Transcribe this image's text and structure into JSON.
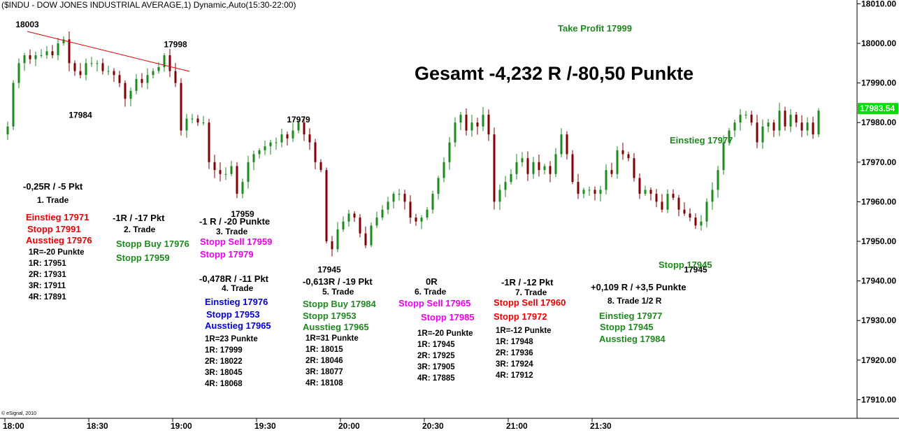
{
  "window_title": "($INDU - DOW JONES INDUSTRIAL AVERAGE,1) Dynamic,Auto(15:30-22:00)",
  "copyright": "© eSignal, 2010",
  "last_price": "17983.54",
  "headline": "Gesamt -4,232 R /-80,50 Punkte",
  "take_profit": "Take Profit 17999",
  "einstieg_right": "Einstieg 17977",
  "stopp_right": "Stopp 17945",
  "colors": {
    "accent_red": "#ee0000",
    "accent_green": "#1e8a1e",
    "magenta": "#ee00ee",
    "blue": "#0000dd",
    "price_tag": "#00dd00"
  },
  "chart_data": {
    "type": "candlestick",
    "title": "($INDU - DOW JONES INDUSTRIAL AVERAGE,1) Dynamic,Auto(15:30-22:00)",
    "y_axis_side": "right",
    "ylim": [
      17904,
      18012
    ],
    "y_ticks": [
      "18010.00",
      "18000.00",
      "17990.00",
      "17980.00",
      "17970.00",
      "17960.00",
      "17950.00",
      "17940.00",
      "17930.00",
      "17920.00",
      "17910.00"
    ],
    "x_ticks": [
      "18:00",
      "18:30",
      "19:00",
      "19:30",
      "20:00",
      "20:30",
      "21:00",
      "21:30"
    ],
    "x_range_minutes": [
      1080,
      1321
    ],
    "close_path": [
      [
        1081,
        17979
      ],
      [
        1083,
        17990
      ],
      [
        1085,
        17995
      ],
      [
        1087,
        17997
      ],
      [
        1089,
        17996
      ],
      [
        1091,
        17997
      ],
      [
        1093,
        17997
      ],
      [
        1095,
        17998
      ],
      [
        1097,
        17997
      ],
      [
        1099,
        18000
      ],
      [
        1101,
        18001
      ],
      [
        1103,
        17995
      ],
      [
        1105,
        17993
      ],
      [
        1107,
        17992
      ],
      [
        1109,
        17995
      ],
      [
        1111,
        17995
      ],
      [
        1113,
        17995
      ],
      [
        1115,
        17993
      ],
      [
        1117,
        17993
      ],
      [
        1119,
        17992
      ],
      [
        1121,
        17990
      ],
      [
        1123,
        17986
      ],
      [
        1125,
        17988
      ],
      [
        1127,
        17991
      ],
      [
        1129,
        17990
      ],
      [
        1131,
        17992
      ],
      [
        1133,
        17993
      ],
      [
        1135,
        17994
      ],
      [
        1137,
        17997
      ],
      [
        1139,
        17993
      ],
      [
        1141,
        17990
      ],
      [
        1143,
        17978
      ],
      [
        1145,
        17981
      ],
      [
        1147,
        17981
      ],
      [
        1149,
        17980
      ],
      [
        1151,
        17980
      ],
      [
        1153,
        17970
      ],
      [
        1155,
        17968
      ],
      [
        1157,
        17967
      ],
      [
        1159,
        17967
      ],
      [
        1161,
        17969
      ],
      [
        1163,
        17962
      ],
      [
        1165,
        17965
      ],
      [
        1167,
        17970
      ],
      [
        1169,
        17972
      ],
      [
        1171,
        17973
      ],
      [
        1173,
        17974
      ],
      [
        1175,
        17975
      ],
      [
        1177,
        17975
      ],
      [
        1179,
        17977
      ],
      [
        1181,
        17976
      ],
      [
        1183,
        17978
      ],
      [
        1185,
        17980
      ],
      [
        1187,
        17977
      ],
      [
        1189,
        17975
      ],
      [
        1191,
        17970
      ],
      [
        1193,
        17968
      ],
      [
        1195,
        17950
      ],
      [
        1197,
        17948
      ],
      [
        1199,
        17953
      ],
      [
        1201,
        17955
      ],
      [
        1203,
        17957
      ],
      [
        1205,
        17956
      ],
      [
        1207,
        17952
      ],
      [
        1209,
        17949
      ],
      [
        1211,
        17954
      ],
      [
        1213,
        17956
      ],
      [
        1215,
        17958
      ],
      [
        1217,
        17960
      ],
      [
        1219,
        17962
      ],
      [
        1221,
        17962
      ],
      [
        1223,
        17960
      ],
      [
        1225,
        17956
      ],
      [
        1227,
        17955
      ],
      [
        1229,
        17956
      ],
      [
        1231,
        17958
      ],
      [
        1233,
        17962
      ],
      [
        1235,
        17966
      ],
      [
        1237,
        17970
      ],
      [
        1239,
        17975
      ],
      [
        1241,
        17980
      ],
      [
        1243,
        17982
      ],
      [
        1245,
        17978
      ],
      [
        1247,
        17980
      ],
      [
        1249,
        17979
      ],
      [
        1251,
        17982
      ],
      [
        1253,
        17977
      ],
      [
        1255,
        17960
      ],
      [
        1257,
        17963
      ],
      [
        1259,
        17965
      ],
      [
        1261,
        17967
      ],
      [
        1263,
        17970
      ],
      [
        1265,
        17971
      ],
      [
        1267,
        17967
      ],
      [
        1269,
        17970
      ],
      [
        1271,
        17968
      ],
      [
        1273,
        17969
      ],
      [
        1275,
        17967
      ],
      [
        1277,
        17972
      ],
      [
        1279,
        17977
      ],
      [
        1281,
        17972
      ],
      [
        1283,
        17965
      ],
      [
        1285,
        17962
      ],
      [
        1287,
        17963
      ],
      [
        1289,
        17963
      ],
      [
        1291,
        17962
      ],
      [
        1293,
        17963
      ],
      [
        1295,
        17968
      ],
      [
        1297,
        17967
      ],
      [
        1299,
        17973
      ],
      [
        1301,
        17972
      ],
      [
        1303,
        17971
      ],
      [
        1305,
        17966
      ],
      [
        1307,
        17962
      ],
      [
        1309,
        17963
      ],
      [
        1311,
        17962
      ],
      [
        1313,
        17960
      ],
      [
        1315,
        17958
      ],
      [
        1317,
        17962
      ],
      [
        1319,
        17961
      ],
      [
        1321,
        17958
      ],
      [
        1323,
        17957
      ],
      [
        1325,
        17956
      ],
      [
        1327,
        17954
      ],
      [
        1329,
        17955
      ],
      [
        1331,
        17960
      ],
      [
        1333,
        17963
      ],
      [
        1335,
        17968
      ],
      [
        1337,
        17975
      ],
      [
        1339,
        17978
      ],
      [
        1341,
        17980
      ],
      [
        1343,
        17982
      ],
      [
        1345,
        17982
      ],
      [
        1347,
        17980
      ],
      [
        1349,
        17975
      ],
      [
        1351,
        17979
      ],
      [
        1353,
        17980
      ],
      [
        1355,
        17978
      ],
      [
        1357,
        17983
      ],
      [
        1359,
        17979
      ],
      [
        1361,
        17982
      ],
      [
        1363,
        17980
      ],
      [
        1365,
        17978
      ],
      [
        1367,
        17980
      ],
      [
        1369,
        17977
      ],
      [
        1371,
        17983
      ]
    ],
    "trend_line": [
      [
        1088,
        18003
      ],
      [
        1120,
        17993
      ]
    ],
    "price_labels": [
      {
        "t": 1088,
        "price": 18003,
        "text": "18003",
        "pos": "above"
      },
      {
        "t": 1107,
        "price": 17984,
        "text": "17984",
        "pos": "below"
      },
      {
        "t": 1141,
        "price": 17998,
        "text": "17998",
        "pos": "above"
      },
      {
        "t": 1165,
        "price": 17959,
        "text": "17959",
        "pos": "below"
      },
      {
        "t": 1185,
        "price": 17979,
        "text": "17979",
        "pos": "above"
      },
      {
        "t": 1196,
        "price": 17945,
        "text": "17945",
        "pos": "below"
      },
      {
        "t": 1327,
        "price": 17945,
        "text": "17945",
        "pos": "below"
      }
    ]
  },
  "trades": [
    {
      "result": "-0,25R / -5 Pkt",
      "name": "1. Trade",
      "lines": [
        "Einstieg 17971",
        "Stopp 17991",
        "Ausstieg 17976"
      ],
      "r_lines": [
        "1R=-20 Punkte",
        "1R: 17951",
        "2R: 17931",
        "3R: 17911",
        "4R: 17891"
      ]
    },
    {
      "result": "-1R / -17 Pkt",
      "name": "2. Trade",
      "lines": [
        "Stopp Buy 17976",
        "Stopp 17959"
      ]
    },
    {
      "result": "-1 R / -20 Punkte",
      "name": "3. Trade",
      "lines": [
        "Stopp Sell 17959",
        "Stopp 17979"
      ]
    },
    {
      "result": "-0,478R / -11 Pkt",
      "name": "4. Trade",
      "lines": [
        "Einstieg 17976",
        "Stopp 17953",
        "Ausstieg 17965"
      ],
      "r_lines": [
        "1R=23 Punkte",
        "1R: 17999",
        "2R: 18022",
        "3R: 18045",
        "4R: 18068"
      ]
    },
    {
      "result": "-0,613R / -19 Pkt",
      "name": "5. Trade",
      "lines": [
        "Stopp Buy 17984",
        "Stopp 17953",
        "Ausstieg 17965"
      ],
      "r_lines": [
        "1R=31 Punkte",
        "1R: 18015",
        "2R: 18046",
        "3R: 18077",
        "4R: 18108"
      ]
    },
    {
      "result": "0R",
      "name": "6. Trade",
      "lines": [
        "Stopp Sell 17965",
        "Stopp 17985"
      ],
      "r_lines": [
        "1R=-20 Punkte",
        "1R: 17945",
        "2R: 17925",
        "3R: 17905",
        "4R: 17885"
      ]
    },
    {
      "result": "-1R / -12 Pkt",
      "name": "7. Trade",
      "lines": [
        "Stopp Sell 17960",
        "Stopp 17972"
      ],
      "r_lines": [
        "1R=-12 Punkte",
        "1R: 17948",
        "2R: 17936",
        "3R: 17924",
        "4R: 17912"
      ]
    },
    {
      "result": "+0,109 R / +3,5 Punkte",
      "name": "8. Trade 1/2 R",
      "lines": [
        "Einstieg 17977",
        "Stopp 17945",
        "Ausstieg 17984"
      ]
    }
  ]
}
